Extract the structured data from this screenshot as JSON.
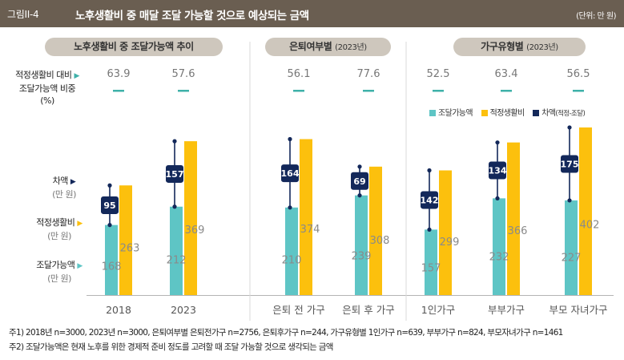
{
  "figure": {
    "number": "그림II-4",
    "title": "노후생활비 중 매달 조달 가능할 것으로 예상되는 금액",
    "unit": "(단위: 만 원)"
  },
  "group_headers": [
    {
      "label": "노후생활비 중 조달가능액 추이",
      "note": ""
    },
    {
      "label": "은퇴여부별",
      "note": "(2023년)"
    },
    {
      "label": "가구유형별",
      "note": "(2023년)"
    }
  ],
  "side_labels": {
    "ratio_line1": "적정생활비 대비",
    "ratio_line2": "조달가능액 비중",
    "ratio_unit": "(%)",
    "gap": "차액",
    "gap_unit": "(만 원)",
    "adequate": "적정생활비",
    "adequate_unit": "(만 원)",
    "available": "조달가능액",
    "available_unit": "(만 원)",
    "marker": "▶"
  },
  "legend": {
    "available": "조달가능액",
    "adequate": "적정생활비",
    "gap": "차액",
    "gap_note": "(적정-조달)"
  },
  "colors": {
    "available": "#5ec5c5",
    "adequate": "#fcc00d",
    "gap": "#13285a",
    "header_bg": "#6a5e51",
    "pill_bg": "#cec7bd",
    "ratio_dash": "#3fb1a9"
  },
  "chart_data": {
    "type": "bar",
    "title": "노후생활비 중 매달 조달 가능할 것으로 예상되는 금액",
    "unit": "만 원",
    "categories": [
      "2018",
      "2023",
      "은퇴 전 가구",
      "은퇴 후 가구",
      "1인가구",
      "부부가구",
      "부모 자녀가구"
    ],
    "groups": [
      "노후생활비 중 조달가능액 추이",
      "은퇴여부별 (2023년)",
      "가구유형별 (2023년)"
    ],
    "group_of_category": [
      0,
      0,
      1,
      1,
      2,
      2,
      2
    ],
    "series": [
      {
        "name": "조달가능액",
        "values": [
          168,
          212,
          210,
          239,
          157,
          232,
          227
        ]
      },
      {
        "name": "적정생활비",
        "values": [
          263,
          369,
          374,
          308,
          299,
          366,
          402
        ]
      }
    ],
    "gap": {
      "name": "차액(적정-조달)",
      "values": [
        95,
        157,
        164,
        69,
        142,
        134,
        175
      ]
    },
    "ratio": {
      "name": "적정생활비 대비 조달가능액 비중 (%)",
      "values": [
        "63.9",
        "57.6",
        "56.1",
        "77.6",
        "52.5",
        "63.4",
        "56.5"
      ]
    },
    "ylim": [
      0,
      420
    ]
  },
  "footnotes": [
    "주1) 2018년 n=3000, 2023년 n=3000, 은퇴여부별 은퇴전가구 n=2756, 은퇴후가구 n=244, 가구유형별 1인가구 n=639, 부부가구 n=824, 부모자녀가구 n=1461",
    "주2) 조달가능액은 현재 노후를 위한 경제적 준비 정도를 고려할 때 조달 가능할 것으로 생각되는 금액"
  ]
}
